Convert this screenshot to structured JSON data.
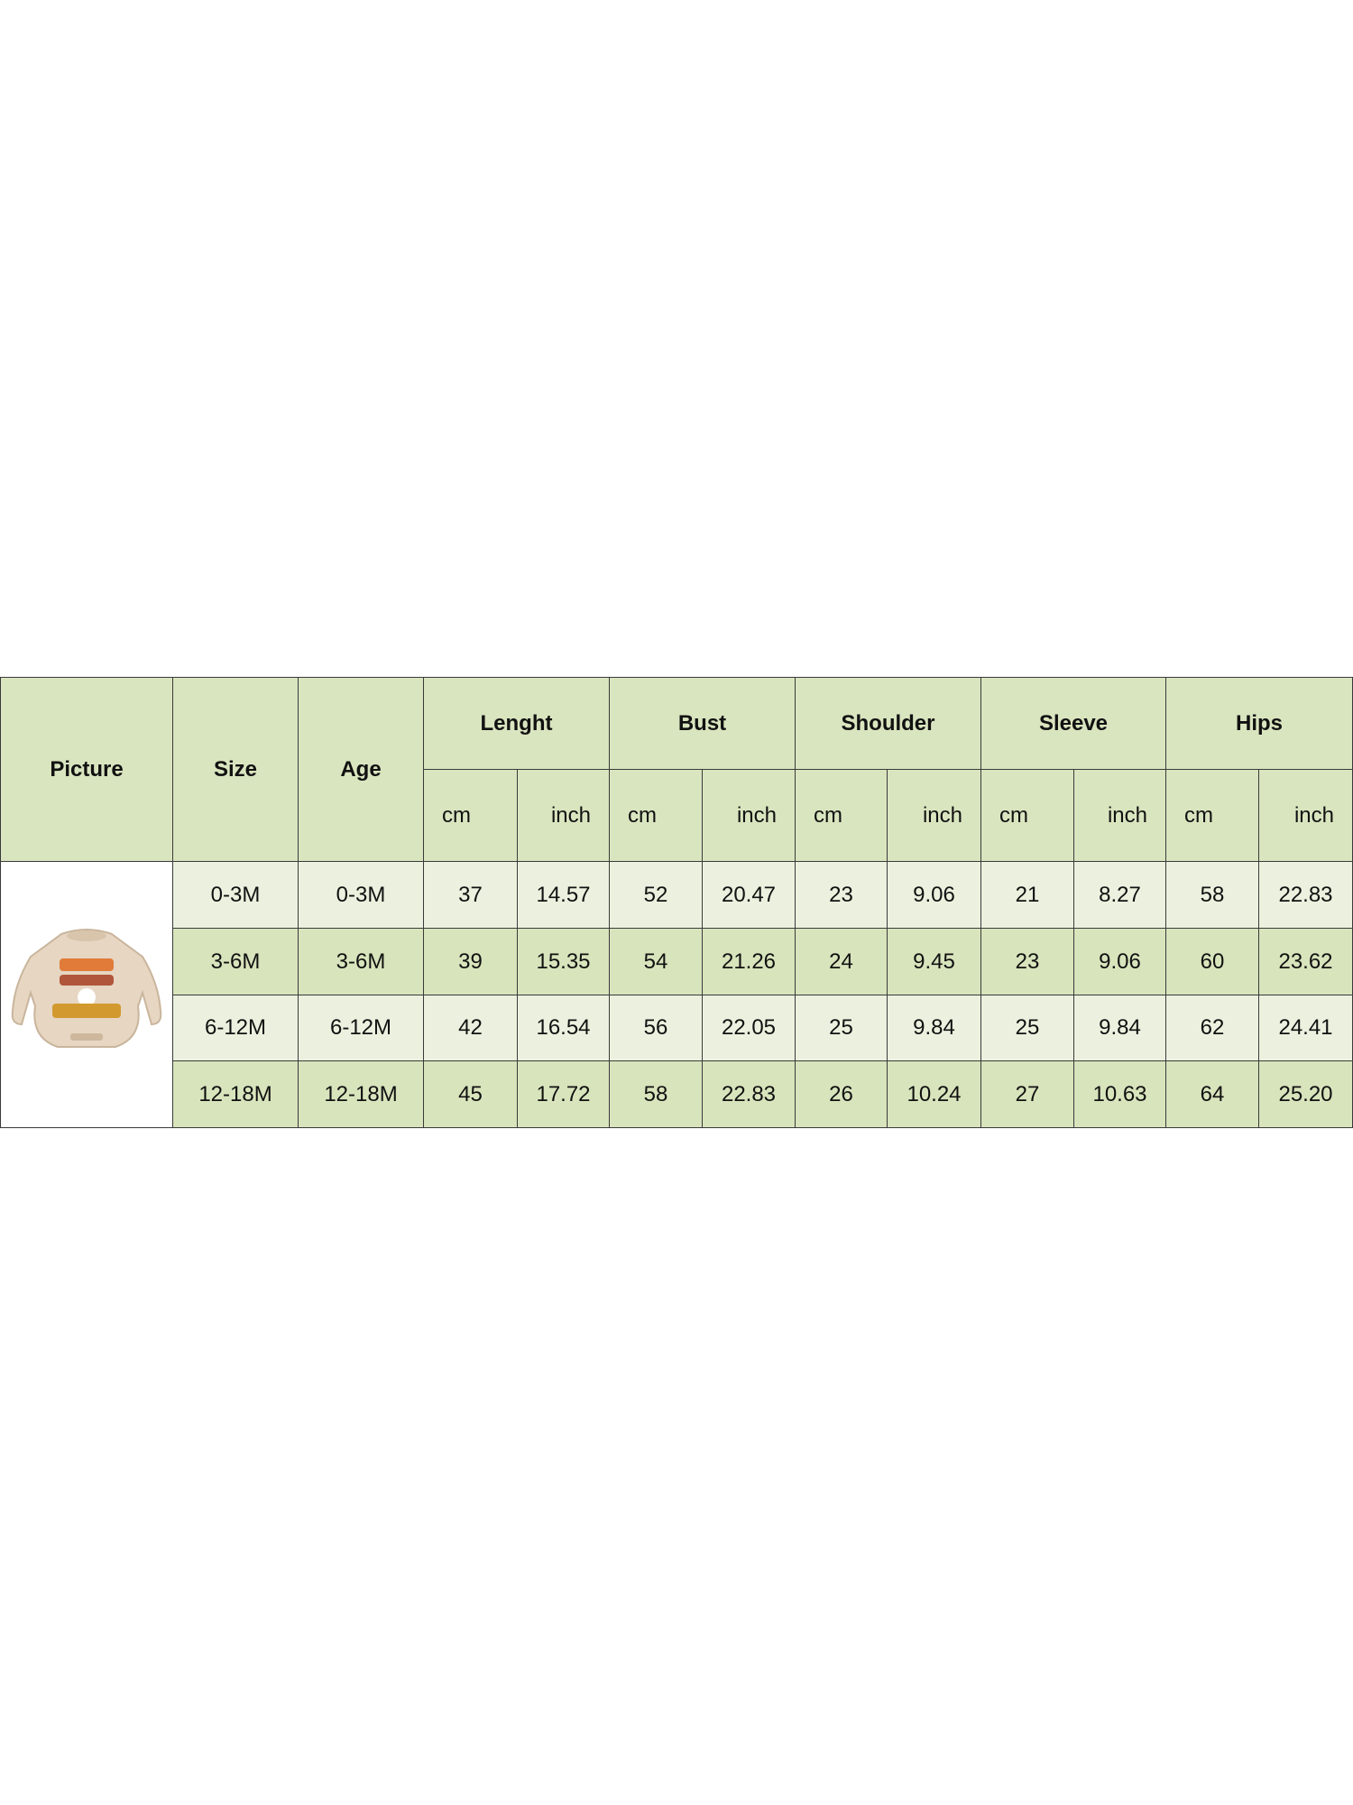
{
  "table": {
    "headers": {
      "picture": "Picture",
      "size": "Size",
      "age": "Age",
      "groups": [
        "Lenght",
        "Bust",
        "Shoulder",
        "Sleeve",
        "Hips"
      ],
      "units": [
        "cm",
        "inch",
        "cm",
        "inch",
        "cm",
        "inch",
        "cm",
        "inch",
        "cm",
        "inch"
      ]
    },
    "rows": [
      [
        "0-3M",
        "0-3M",
        "37",
        "14.57",
        "52",
        "20.47",
        "23",
        "9.06",
        "21",
        "8.27",
        "58",
        "22.83"
      ],
      [
        "3-6M",
        "3-6M",
        "39",
        "15.35",
        "54",
        "21.26",
        "24",
        "9.45",
        "23",
        "9.06",
        "60",
        "23.62"
      ],
      [
        "6-12M",
        "6-12M",
        "42",
        "16.54",
        "56",
        "22.05",
        "25",
        "9.84",
        "25",
        "9.84",
        "62",
        "24.41"
      ],
      [
        "12-18M",
        "12-18M",
        "45",
        "17.72",
        "58",
        "22.83",
        "26",
        "10.24",
        "27",
        "10.63",
        "64",
        "25.20"
      ]
    ]
  }
}
